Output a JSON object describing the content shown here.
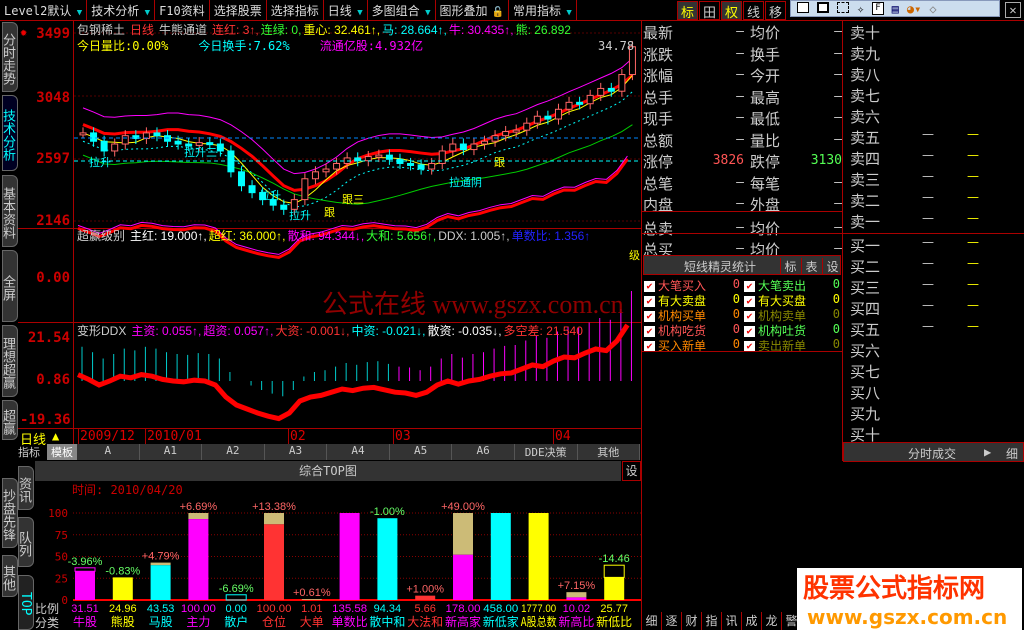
{
  "toolbar": {
    "items": [
      "Level2默认",
      "技术分析",
      "F10资料",
      "选择股票",
      "选择指标",
      "日线",
      "多图组合",
      "图形叠加",
      "常用指标"
    ],
    "right_buttons": [
      "标",
      "田",
      "权",
      "线",
      "移"
    ]
  },
  "side_tabs": [
    "分时走势",
    "技术分析",
    "基本资料",
    "全屏",
    "理想超赢",
    "超赢分析"
  ],
  "main": {
    "stock": "包钢稀土",
    "period": "日线",
    "indicator": "牛熊通道",
    "legend": [
      {
        "t": "连红: 3↑,",
        "c": "#f33"
      },
      {
        "t": "连绿: 0,",
        "c": "#3f3"
      },
      {
        "t": "重心: 32.461↑,",
        "c": "#ff0"
      },
      {
        "t": "马: 28.664↑,",
        "c": "#0ff"
      },
      {
        "t": "牛: 30.435↑,",
        "c": "#f0f"
      },
      {
        "t": "熊: 26.892",
        "c": "#3f3"
      }
    ],
    "line2": [
      {
        "t": "今日量比:0.00%",
        "c": "#ff0"
      },
      {
        "t": "今日换手:7.62%",
        "c": "#0ff"
      },
      {
        "t": "流通亿股:4.932亿",
        "c": "#f0f"
      }
    ],
    "high_label": "34.78",
    "y_ticks": [
      "3499",
      "3048",
      "2597",
      "2146"
    ],
    "y_range": [
      2146,
      3499
    ],
    "annotations": [
      "拉升",
      "拉升三",
      "拉升",
      "拉升",
      "跟",
      "跟三",
      "拉通阴",
      "跟"
    ],
    "closes": [
      2780,
      2720,
      2650,
      2700,
      2760,
      2740,
      2780,
      2760,
      2720,
      2700,
      2690,
      2710,
      2700,
      2650,
      2500,
      2400,
      2350,
      2300,
      2260,
      2230,
      2300,
      2450,
      2500,
      2520,
      2560,
      2600,
      2580,
      2610,
      2620,
      2590,
      2560,
      2550,
      2520,
      2560,
      2650,
      2700,
      2660,
      2700,
      2720,
      2760,
      2790,
      2800,
      2850,
      2900,
      2880,
      2950,
      3000,
      2990,
      3050,
      3100,
      3080,
      3200,
      3400
    ]
  },
  "ind1": {
    "name": "超赢级别",
    "y_tick": "0.00",
    "legend": [
      {
        "t": "主红: 19.000↑,",
        "c": "#fff"
      },
      {
        "t": "超红: 36.000↑,",
        "c": "#ff0"
      },
      {
        "t": "散和: 94.344↓,",
        "c": "#f0f"
      },
      {
        "t": "大和: 5.656↑,",
        "c": "#3f3"
      },
      {
        "t": "DDX: 1.005↑,",
        "c": "#ccc"
      },
      {
        "t": "单数比: 1.356↑",
        "c": "#22f"
      }
    ],
    "end_label": "级"
  },
  "ind2": {
    "name": "变形DDX",
    "y_ticks": [
      "21.54",
      "0.86",
      "-19.36"
    ],
    "legend": [
      {
        "t": "主资: 0.055↑,",
        "c": "#f0f"
      },
      {
        "t": "超资: 0.057↑,",
        "c": "#f0f"
      },
      {
        "t": "大资: -0.001↓,",
        "c": "#f33"
      },
      {
        "t": "中资: -0.021↓,",
        "c": "#0ff"
      },
      {
        "t": "散资: -0.035↓,",
        "c": "#fff"
      },
      {
        "t": "多空差: 21.540",
        "c": "#f33"
      }
    ]
  },
  "watermark_center": "公式在线 www.gszx.com.cn",
  "date_axis": {
    "period": "日线",
    "labels": [
      "2009/12",
      "2010/01",
      "02",
      "03",
      "04"
    ]
  },
  "template_tabs": {
    "left": [
      "指标",
      "模板"
    ],
    "items": [
      "A",
      "A1",
      "A2",
      "A3",
      "A4",
      "A5",
      "A6",
      "DDE决策",
      "其他"
    ]
  },
  "bottom_side_tabs": [
    "资讯",
    "抄盘先锋",
    "队列",
    "其他",
    "TOP"
  ],
  "top_chart": {
    "title": "综合TOP图",
    "settings": "设",
    "time": "时间: 2010/04/20",
    "row_labels": [
      "比例",
      "分类"
    ],
    "chart_data": {
      "type": "bar",
      "ylim": [
        0,
        100
      ],
      "y_ticks": [
        "0",
        "25",
        "50",
        "75",
        "100"
      ],
      "grid": true,
      "categories": [
        "牛股",
        "熊股",
        "马股",
        "主力",
        "散户",
        "仓位",
        "大单",
        "单数比",
        "散中和",
        "大法和",
        "新高家",
        "新低家",
        "A股总数",
        "新高比",
        "新低比"
      ],
      "ratios": [
        "31.51",
        "24.96",
        "43.53",
        "100.00",
        "0.00",
        "100.00",
        "1.01",
        "135.58",
        "94.34",
        "5.66",
        "178.00",
        "458.00",
        "1777.00",
        "10.02",
        "25.77"
      ],
      "changes": [
        "-3.96%",
        "-0.83%",
        "+4.79%",
        "+6.69%",
        "-6.69%",
        "+13.38%",
        "+0.61%",
        "",
        "-1.00%",
        "+1.00%",
        "+49.00%",
        "",
        "",
        "+7.15%",
        "-14.46"
      ],
      "values": [
        33,
        26,
        40,
        93,
        0,
        87,
        0,
        100,
        94,
        5,
        52,
        100,
        100,
        3,
        26
      ],
      "prev_values": [
        37,
        26,
        43,
        100,
        6,
        100,
        1,
        100,
        94,
        5,
        100,
        100,
        100,
        9,
        40
      ],
      "colors": [
        "#f0f",
        "#ff0",
        "#0ff",
        "#f0f",
        "#0ff",
        "#f33",
        "#f33",
        "#f0f",
        "#0ff",
        "#f33",
        "#f0f",
        "#0ff",
        "#ff0",
        "#f0f",
        "#ff0"
      ]
    }
  },
  "quote": {
    "rows": [
      [
        "最新",
        "—",
        "均价",
        "—"
      ],
      [
        "涨跌",
        "—",
        "换手",
        "—"
      ],
      [
        "涨幅",
        "—",
        "今开",
        "—"
      ],
      [
        "总手",
        "—",
        "最高",
        "—"
      ],
      [
        "现手",
        "—",
        "最低",
        "—"
      ],
      [
        "总额",
        "—",
        "量比",
        "—"
      ],
      [
        "涨停",
        "3826",
        "跌停",
        "3130"
      ],
      [
        "总笔",
        "—",
        "每笔",
        "—"
      ],
      [
        "内盘",
        "—",
        "外盘",
        "—"
      ],
      [
        "总卖",
        "—",
        "均价",
        "—"
      ],
      [
        "总买",
        "—",
        "均价",
        "—"
      ]
    ]
  },
  "orderbook": {
    "sell": [
      "卖十",
      "卖九",
      "卖八",
      "卖七",
      "卖六",
      "卖五",
      "卖四",
      "卖三",
      "卖二",
      "卖一"
    ],
    "buy": [
      "买一",
      "买二",
      "买三",
      "买四",
      "买五",
      "买六",
      "买七",
      "买八",
      "买九",
      "买十"
    ],
    "dash": "—",
    "footer": "分时成交",
    "footer_btn": "细"
  },
  "elf": {
    "title": "短线精灵统计",
    "btns": [
      "标",
      "表",
      "设"
    ],
    "items": [
      [
        "大笔买入",
        "0",
        "#f55"
      ],
      [
        "大笔卖出",
        "0",
        "#5f5"
      ],
      [
        "有大卖盘",
        "0",
        "#ff0"
      ],
      [
        "有大买盘",
        "0",
        "#ff0"
      ],
      [
        "机构买单",
        "0",
        "#f80"
      ],
      [
        "机构卖单",
        "0",
        "#880"
      ],
      [
        "机构吃货",
        "0",
        "#f55"
      ],
      [
        "机构吐货",
        "0",
        "#5f5"
      ],
      [
        "买入新单",
        "0",
        "#f80"
      ],
      [
        "卖出新单",
        "0",
        "#880"
      ]
    ]
  },
  "bottom_tabs": [
    "细",
    "逐",
    "财",
    "指",
    "讯",
    "成",
    "龙",
    "警"
  ],
  "watermark": {
    "line1": "股票公式指标网",
    "line2": "www.gszx.com.cn"
  }
}
